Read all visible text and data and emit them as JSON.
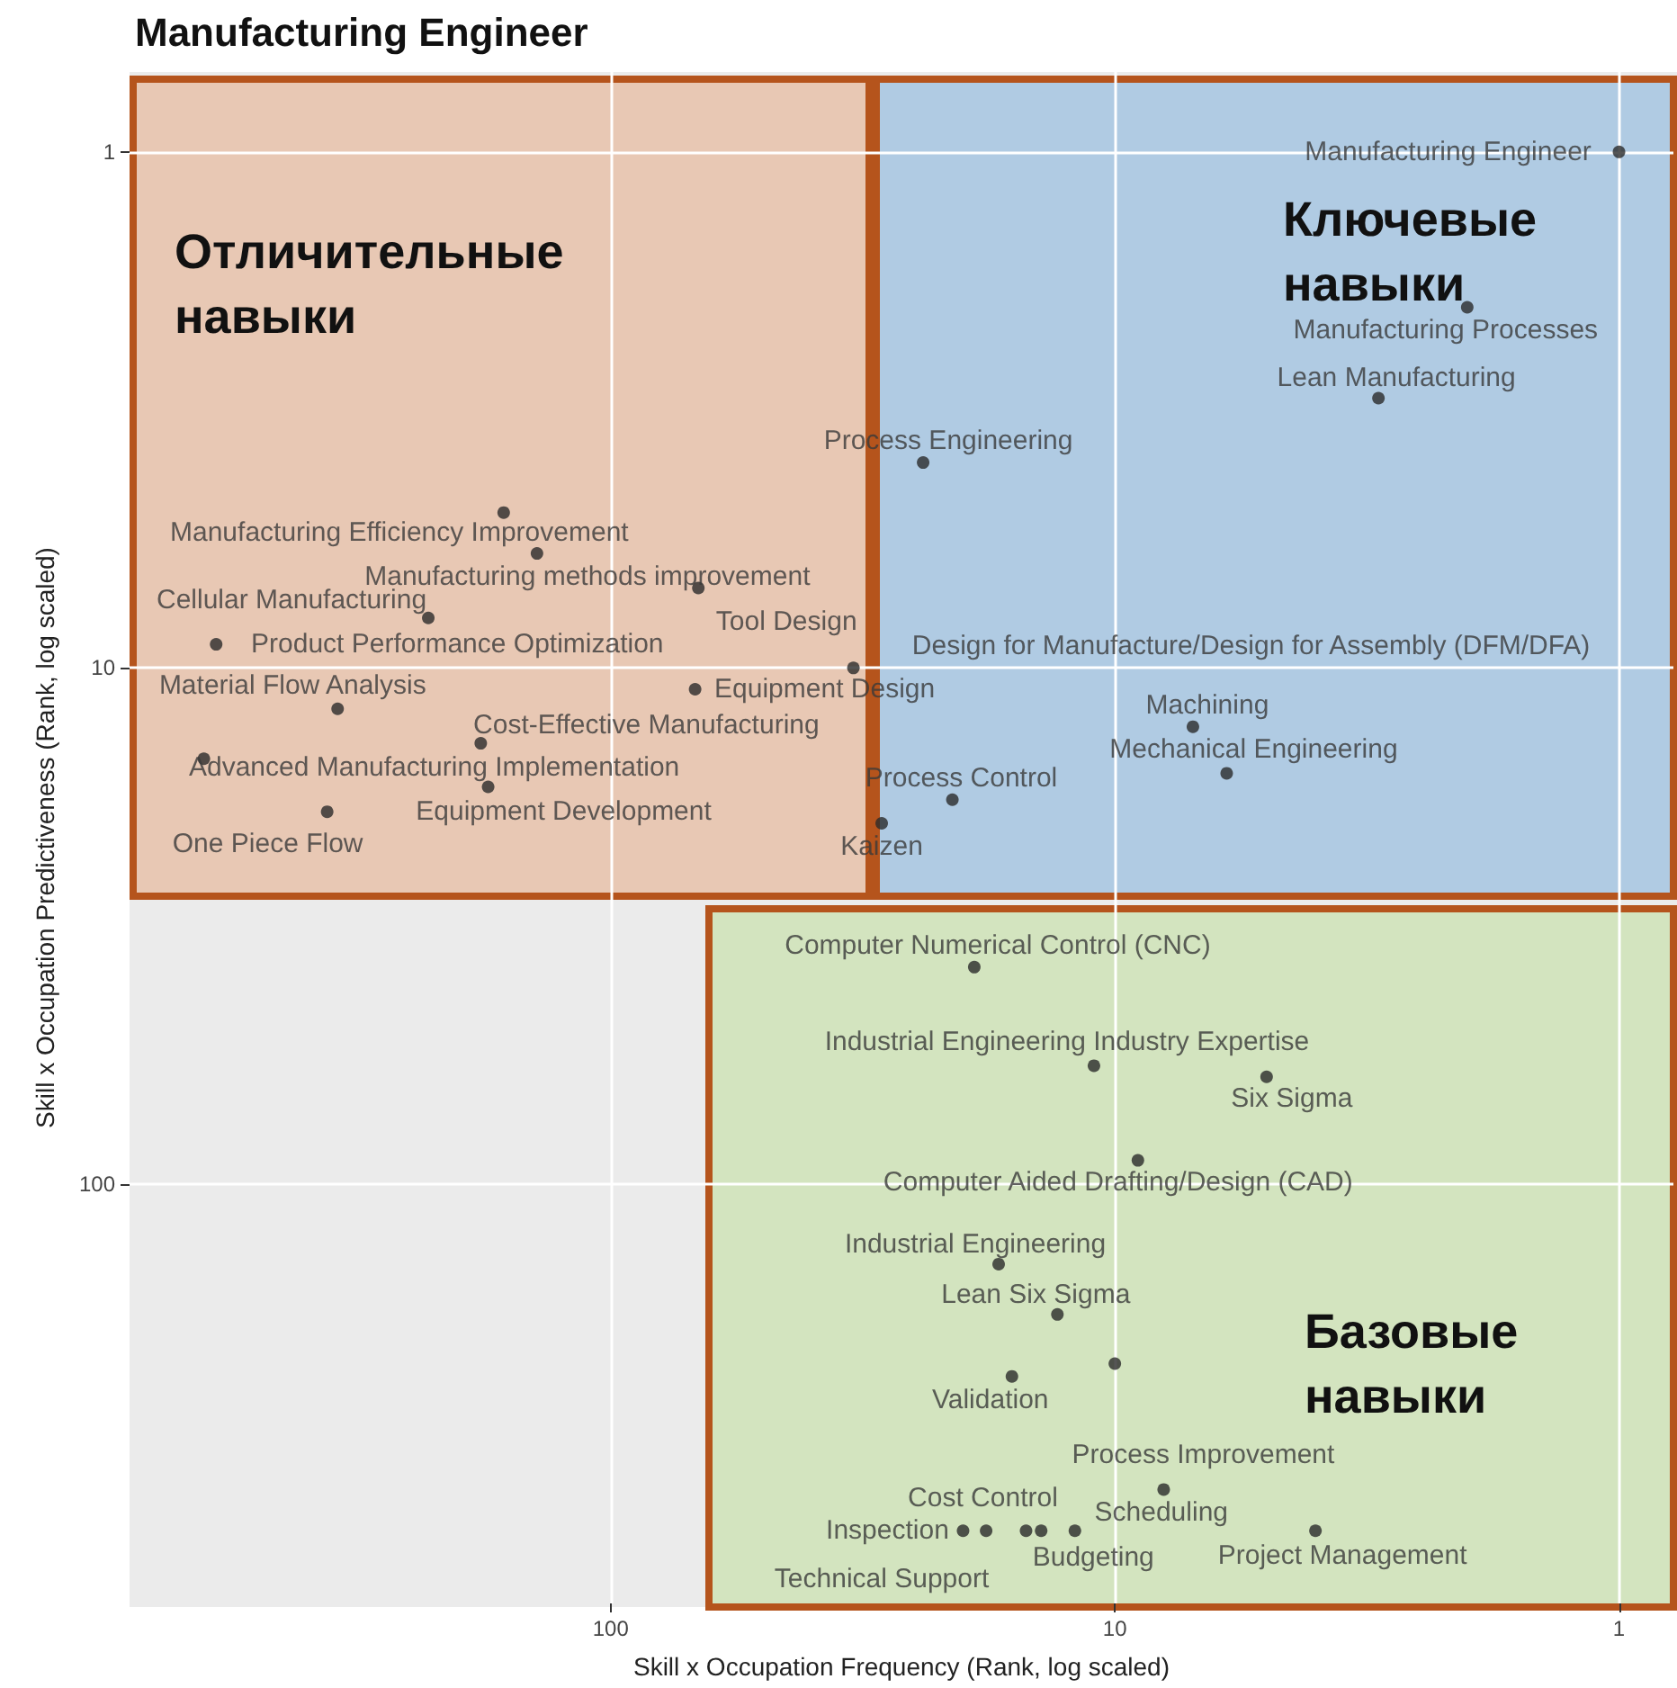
{
  "chart_data": {
    "type": "scatter",
    "title": "Manufacturing Engineer",
    "xlabel": "Skill x Occupation Frequency (Rank, log scaled)",
    "ylabel": "Skill x Occupation Predictiveness (Rank, log scaled)",
    "log": "xy",
    "grid": true,
    "legend": false,
    "marker": "circle",
    "xlim": [
      900,
      0.78
    ],
    "ylim": [
      650,
      0.7
    ],
    "xticks": [
      100,
      10,
      1
    ],
    "yticks": [
      1,
      10,
      100
    ],
    "annotations": [
      "Отличительные\nнавыки",
      "Ключевые\nнавыки",
      "Базовые\nнавыки"
    ],
    "series": [
      {
        "name": "Manufacturing Engineer",
        "color": "#2b2b2b",
        "x": [
          1
        ],
        "values": [
          1
        ]
      },
      {
        "name": "Manufacturing Processes",
        "color": "#2b2b2b",
        "x": [
          2
        ],
        "values": [
          2
        ]
      },
      {
        "name": "Lean Manufacturing",
        "color": "#2b2b2b",
        "x": [
          3
        ],
        "values": [
          3
        ]
      },
      {
        "name": "Process Engineering",
        "color": "#2b2b2b",
        "x": [
          24
        ],
        "values": [
          4
        ]
      },
      {
        "name": "Manufacturing Efficiency Improvement",
        "color": "#2b2b2b",
        "x": [
          163
        ],
        "values": [
          5
        ]
      },
      {
        "name": "Manufacturing methods improvement",
        "color": "#2b2b2b",
        "x": [
          140
        ],
        "values": [
          6
        ]
      },
      {
        "name": "Tool Design",
        "color": "#2b2b2b",
        "x": [
          67
        ],
        "values": [
          7
        ]
      },
      {
        "name": "Cellular Manufacturing",
        "color": "#2b2b2b",
        "x": [
          230
        ],
        "values": [
          8
        ]
      },
      {
        "name": "Product Performance Optimization",
        "color": "#2b2b2b",
        "x": [
          606
        ],
        "values": [
          9
        ]
      },
      {
        "name": "Design for Manufacture/Design for Assembly (DFM/DFA)",
        "color": "#2b2b2b",
        "x": [
          33
        ],
        "values": [
          10
        ]
      },
      {
        "name": "Equipment Design",
        "color": "#2b2b2b",
        "x": [
          68
        ],
        "values": [
          11
        ]
      },
      {
        "name": "Material Flow Analysis",
        "color": "#2b2b2b",
        "x": [
          348
        ],
        "values": [
          12
        ]
      },
      {
        "name": "Machining",
        "color": "#2b2b2b",
        "x": [
          7
        ],
        "values": [
          13
        ]
      },
      {
        "name": "Cost-Effective Manufacturing",
        "color": "#2b2b2b",
        "x": [
          181
        ],
        "values": [
          14
        ]
      },
      {
        "name": "Advanced Manufacturing Implementation",
        "color": "#2b2b2b",
        "x": [
          641
        ],
        "values": [
          15
        ]
      },
      {
        "name": "Mechanical Engineering",
        "color": "#2b2b2b",
        "x": [
          6
        ],
        "values": [
          16
        ]
      },
      {
        "name": "Equipment Development",
        "color": "#2b2b2b",
        "x": [
          175
        ],
        "values": [
          17
        ]
      },
      {
        "name": "Process Control",
        "color": "#2b2b2b",
        "x": [
          21
        ],
        "values": [
          18
        ]
      },
      {
        "name": "One Piece Flow",
        "color": "#2b2b2b",
        "x": [
          365
        ],
        "values": [
          19
        ]
      },
      {
        "name": "Kaizen",
        "color": "#2b2b2b",
        "x": [
          29
        ],
        "values": [
          20
        ]
      },
      {
        "name": "Computer Numerical Control (CNC)",
        "color": "#2b2b2b",
        "x": [
          19
        ],
        "values": [
          38
        ]
      },
      {
        "name": "Industrial Engineering Industry Expertise",
        "color": "#2b2b2b",
        "x": [
          11
        ],
        "values": [
          59
        ]
      },
      {
        "name": "Six Sigma",
        "color": "#2b2b2b",
        "x": [
          5
        ],
        "values": [
          62
        ]
      },
      {
        "name": "Computer Aided Drafting/Design (CAD)",
        "color": "#2b2b2b",
        "x": [
          9
        ],
        "values": [
          90
        ]
      },
      {
        "name": "Industrial Engineering",
        "color": "#2b2b2b",
        "x": [
          17
        ],
        "values": [
          143
        ]
      },
      {
        "name": "Lean Six Sigma",
        "color": "#2b2b2b",
        "x": [
          13
        ],
        "values": [
          179
        ]
      },
      {
        "color": "#2b2b2b",
        "x": [
          10
        ],
        "values": [
          223
        ]
      },
      {
        "name": "Validation",
        "color": "#2b2b2b",
        "x": [
          16
        ],
        "values": [
          236
        ]
      },
      {
        "name": "Process Improvement",
        "color": "#2b2b2b",
        "x": [
          8
        ],
        "values": [
          391
        ]
      },
      {
        "name": "Scheduling",
        "color": "#2b2b2b",
        "x": [
          12
        ],
        "values": [
          470
        ]
      },
      {
        "name": "Project Management",
        "color": "#2b2b2b",
        "x": [
          4
        ],
        "values": [
          470
        ]
      },
      {
        "name": "Cost Control",
        "color": "#2b2b2b",
        "x": [
          15
        ],
        "values": [
          470
        ]
      },
      {
        "name": "Budgeting",
        "color": "#2b2b2b",
        "x": [
          14
        ],
        "values": [
          470
        ]
      },
      {
        "name": "Technical Support",
        "color": "#2b2b2b",
        "x": [
          18
        ],
        "values": [
          470
        ]
      },
      {
        "name": "Inspection",
        "color": "#2b2b2b",
        "x": [
          20
        ],
        "values": [
          470
        ]
      }
    ]
  }
}
